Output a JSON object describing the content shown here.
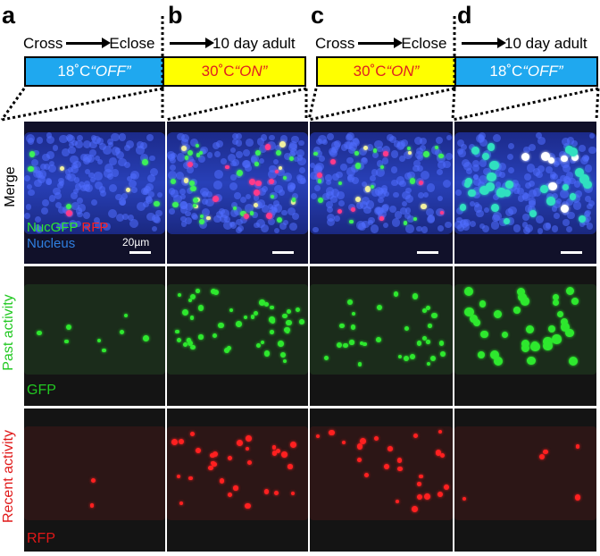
{
  "panels": [
    {
      "label": "a",
      "step_from": "Cross",
      "step_to": "Eclose"
    },
    {
      "label": "b",
      "step_to": "10 day adult"
    },
    {
      "label": "c",
      "step_from": "Cross",
      "step_to": "Eclose"
    },
    {
      "label": "d",
      "step_to": "10 day adult"
    }
  ],
  "temperature_bars": [
    {
      "temp": "18˚C ",
      "state": "“OFF”",
      "color": "#1fa8ef"
    },
    {
      "temp": "30˚C ",
      "state": "“ON”",
      "color": "#ffff00"
    },
    {
      "temp": "30˚C ",
      "state": "“ON”",
      "color": "#ffff00"
    },
    {
      "temp": "18˚C ",
      "state": "“OFF”",
      "color": "#1fa8ef"
    }
  ],
  "row_labels": {
    "merge": "Merge",
    "past": "Past activity",
    "recent": "Recent activity"
  },
  "legend": {
    "nucgfp": "NucGFP",
    "rfp": "RFP",
    "nucleus": "Nucleus",
    "scale": "20µm",
    "gfp": "GFP",
    "rfp_channel": "RFP"
  },
  "colors": {
    "gfp": "#2ee82e",
    "rfp": "#ff2020",
    "nucleus": "#2f7fe0",
    "on_text": "#e02020",
    "off_text": "#ffffff",
    "past_label": "#22c822",
    "recent_label": "#e01818"
  }
}
